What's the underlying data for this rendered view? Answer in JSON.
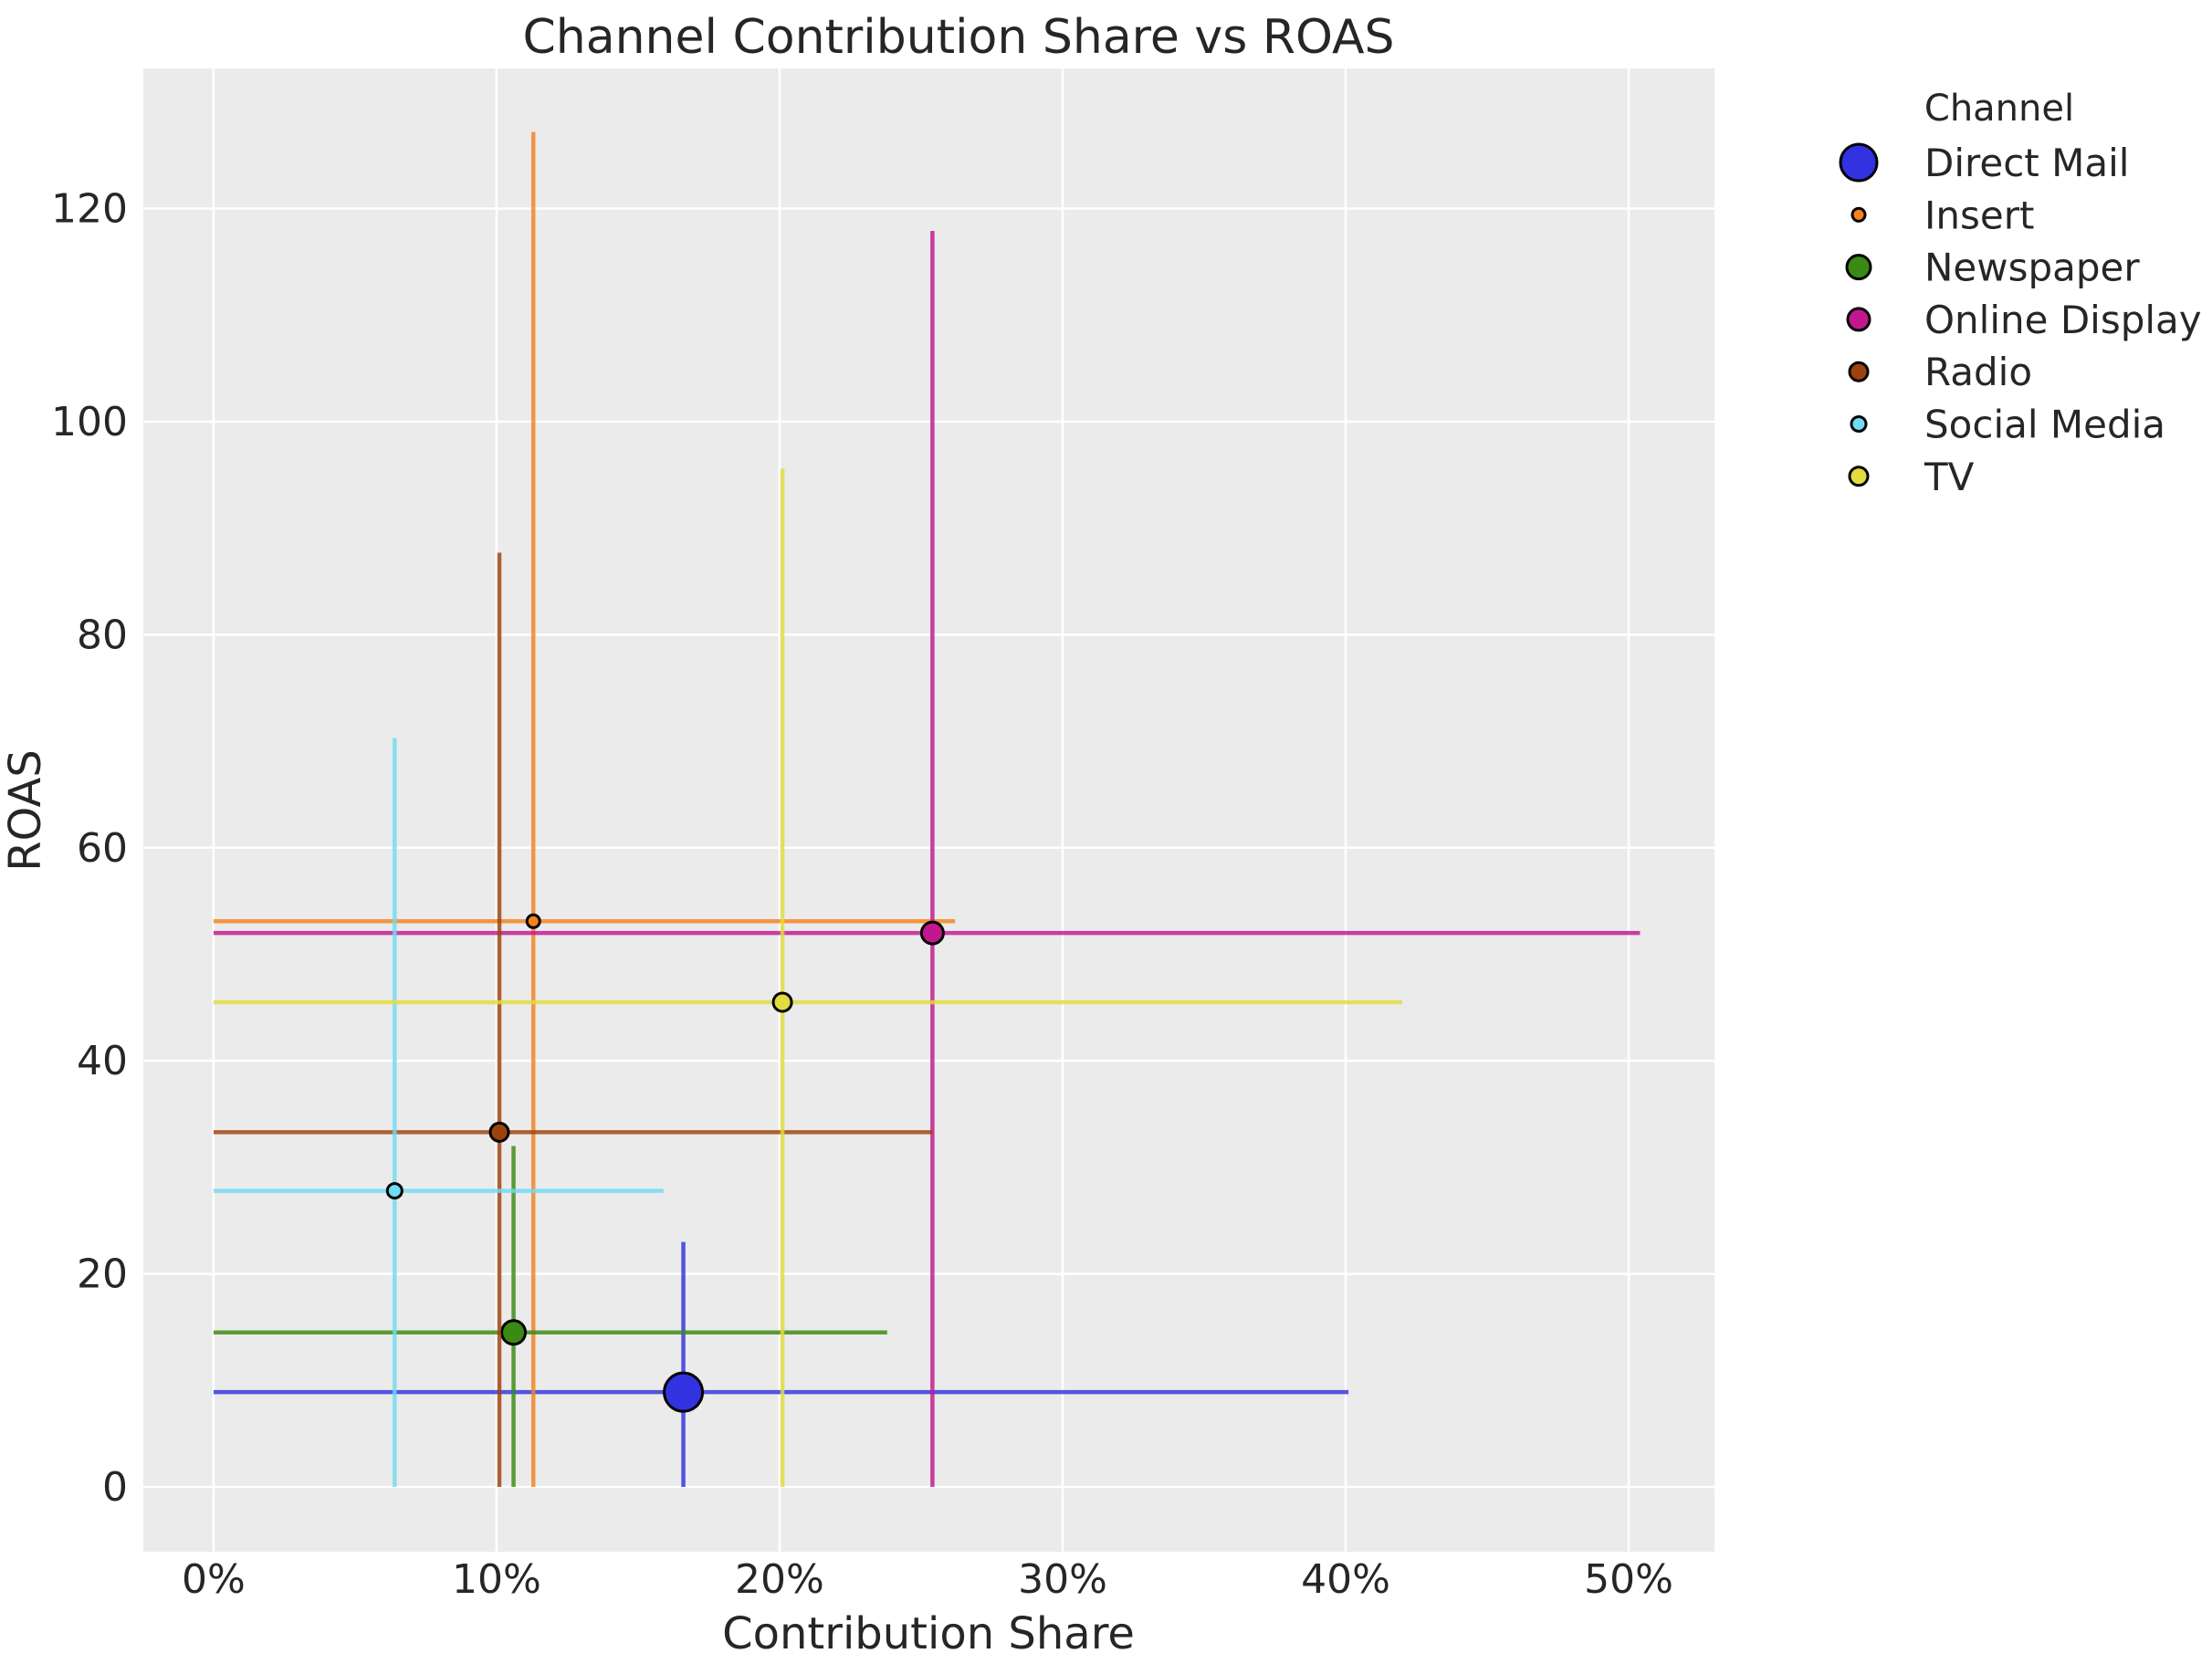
{
  "title": "Channel Contribution Share vs ROAS",
  "legend": {
    "title": "Channel",
    "entries": [
      "Direct Mail",
      "Insert",
      "Newspaper",
      "Online Display",
      "Radio",
      "Social Media",
      "TV"
    ]
  },
  "chart_data": {
    "type": "scatter",
    "title": "Channel Contribution Share vs ROAS",
    "xlabel": "Contribution Share",
    "ylabel": "ROAS",
    "x_ticks": [
      "0%",
      "10%",
      "20%",
      "30%",
      "40%",
      "50%"
    ],
    "x_tick_values": [
      0,
      10,
      20,
      30,
      40,
      50
    ],
    "y_ticks": [
      "0",
      "20",
      "40",
      "60",
      "80",
      "100",
      "120"
    ],
    "y_tick_values": [
      0,
      20,
      40,
      60,
      80,
      100,
      120
    ],
    "xlim": [
      -2.48,
      53.03
    ],
    "ylim": [
      -6.08,
      133.15
    ],
    "x_unit": "percent",
    "grid": true,
    "legend_position": "outside-upper-right",
    "style": {
      "plot_background": "#EBEBEB",
      "grid_color": "#FFFFFF",
      "text_color": "#262626",
      "marker_edge_color": "#000000"
    },
    "series": [
      {
        "name": "Direct Mail",
        "color": "#3232E1",
        "x": 16.6,
        "y": 8.9,
        "x_err": [
          0,
          40.1
        ],
        "y_err": [
          0,
          23.0
        ],
        "marker_radius": 21
      },
      {
        "name": "Insert",
        "color": "#F5831D",
        "x": 11.3,
        "y": 53.1,
        "x_err": [
          0,
          26.2
        ],
        "y_err": [
          0,
          127.2
        ],
        "marker_radius": 7
      },
      {
        "name": "Newspaper",
        "color": "#3A8A13",
        "x": 10.6,
        "y": 14.5,
        "x_err": [
          0,
          23.8
        ],
        "y_err": [
          0,
          32.0
        ],
        "marker_radius": 13
      },
      {
        "name": "Online Display",
        "color": "#C2188F",
        "x": 25.4,
        "y": 52.0,
        "x_err": [
          0,
          50.4
        ],
        "y_err": [
          0,
          117.9
        ],
        "marker_radius": 12
      },
      {
        "name": "Radio",
        "color": "#9C430F",
        "x": 10.1,
        "y": 33.3,
        "x_err": [
          0,
          25.4
        ],
        "y_err": [
          0,
          87.7
        ],
        "marker_radius": 10
      },
      {
        "name": "Social Media",
        "color": "#6FDCF3",
        "x": 6.4,
        "y": 27.8,
        "x_err": [
          0,
          15.9
        ],
        "y_err": [
          0,
          70.3
        ],
        "marker_radius": 8
      },
      {
        "name": "TV",
        "color": "#E2DC3E",
        "x": 20.1,
        "y": 45.5,
        "x_err": [
          0,
          42.0
        ],
        "y_err": [
          0,
          95.6
        ],
        "marker_radius": 10
      }
    ]
  }
}
